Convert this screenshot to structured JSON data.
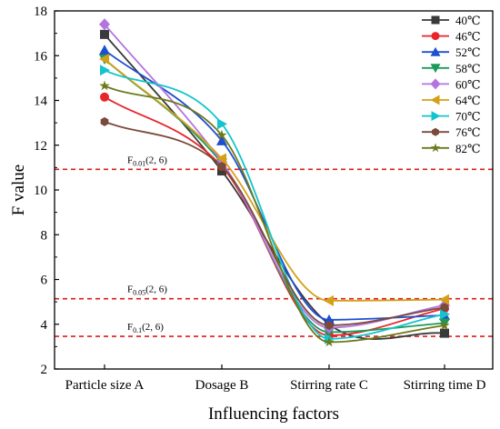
{
  "chart_data": {
    "type": "line",
    "xlabel": "Influencing factors",
    "ylabel": "F value",
    "categories": [
      "Particle size A",
      "Dosage B",
      "Stirring rate C",
      "Stirring time D"
    ],
    "ylim": [
      2,
      18
    ],
    "yticks": [
      2,
      4,
      6,
      8,
      10,
      12,
      14,
      16,
      18
    ],
    "grid": false,
    "legend_position": "top-right",
    "series": [
      {
        "name": "40℃",
        "color": "#3a3a3a",
        "marker": "square",
        "values": [
          16.95,
          10.85,
          4.0,
          3.6
        ]
      },
      {
        "name": "46℃",
        "color": "#e8252b",
        "marker": "circle",
        "values": [
          14.15,
          11.05,
          3.5,
          4.7
        ]
      },
      {
        "name": "52℃",
        "color": "#1f4fd1",
        "marker": "triangle-up",
        "values": [
          16.25,
          12.2,
          4.2,
          4.4
        ]
      },
      {
        "name": "58℃",
        "color": "#1d9a5a",
        "marker": "triangle-down",
        "values": [
          15.85,
          11.2,
          3.65,
          4.05
        ]
      },
      {
        "name": "60℃",
        "color": "#b374e0",
        "marker": "diamond",
        "values": [
          17.4,
          11.25,
          3.85,
          4.85
        ]
      },
      {
        "name": "64℃",
        "color": "#d4a018",
        "marker": "triangle-left",
        "values": [
          15.85,
          11.4,
          5.05,
          5.1
        ]
      },
      {
        "name": "70℃",
        "color": "#14c4cc",
        "marker": "triangle-right",
        "values": [
          15.35,
          12.95,
          3.35,
          4.45
        ]
      },
      {
        "name": "76℃",
        "color": "#7a4a3a",
        "marker": "hexagon",
        "values": [
          13.05,
          11.05,
          3.95,
          4.75
        ]
      },
      {
        "name": "82℃",
        "color": "#6b7a1c",
        "marker": "star",
        "values": [
          14.65,
          12.45,
          3.2,
          3.95
        ]
      }
    ],
    "reference_lines": [
      {
        "value": 10.92,
        "label_main": "F",
        "label_sub": "0.01",
        "label_tail": "(2, 6)",
        "color": "#e01a1a",
        "style": "dashed"
      },
      {
        "value": 5.14,
        "label_main": "F",
        "label_sub": "0.05",
        "label_tail": "(2, 6)",
        "color": "#e01a1a",
        "style": "dashed"
      },
      {
        "value": 3.46,
        "label_main": "F",
        "label_sub": "0.1",
        "label_tail": "(2, 6)",
        "color": "#e01a1a",
        "style": "dashed"
      }
    ]
  }
}
